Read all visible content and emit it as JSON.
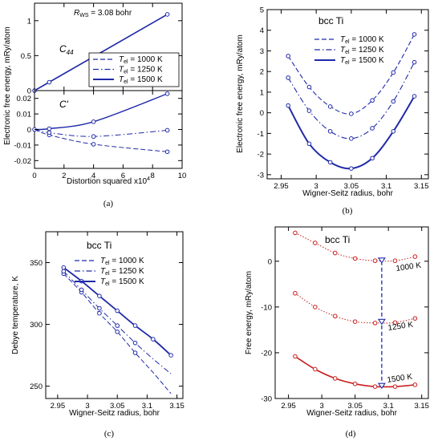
{
  "chart_data": [
    {
      "type": "line",
      "panel": "(a)",
      "xlabel": "Distortion squared x10",
      "xlabel_sup": "4",
      "ylabel": "Electronic free energy, mRy/atom",
      "annotations": {
        "rws": "R",
        "rws_sub": "WS",
        "rws_val": " = 3.08 bohr",
        "top": "C",
        "top_sub": "44",
        "bottom": "C'"
      },
      "xlim": [
        0,
        10
      ],
      "xticks": [
        "0",
        "2",
        "4",
        "6",
        "8",
        "10"
      ],
      "legend": [
        {
          "T": "T",
          "sub": "el",
          "rest": " = 1000 K",
          "style": "dashed"
        },
        {
          "T": "T",
          "sub": "el",
          "rest": " = 1250 K",
          "style": "dashdot"
        },
        {
          "T": "T",
          "sub": "el",
          "rest": " = 1500 K",
          "style": "solid"
        }
      ],
      "top_panel": {
        "ylim": [
          0,
          1.25
        ],
        "yticks": [
          "0",
          "0.5",
          "1"
        ],
        "points": [
          [
            0,
            0
          ],
          [
            1,
            0.12
          ],
          [
            4,
            0.48
          ],
          [
            9,
            1.09
          ]
        ],
        "series": [
          {
            "name": "1000 K",
            "values": [
              [
                0,
                0
              ],
              [
                9,
                1.09
              ]
            ]
          },
          {
            "name": "1250 K",
            "values": [
              [
                0,
                0
              ],
              [
                9,
                1.09
              ]
            ]
          },
          {
            "name": "1500 K",
            "values": [
              [
                0,
                0
              ],
              [
                9,
                1.09
              ]
            ]
          }
        ]
      },
      "bottom_panel": {
        "ylim": [
          -0.025,
          0.025
        ],
        "yticks": [
          "0.02",
          "0.01",
          "0",
          "-0.01",
          "-0.02"
        ],
        "series": [
          {
            "name": "1000 K",
            "values": [
              [
                0,
                0
              ],
              [
                1,
                -0.0035
              ],
              [
                4,
                -0.0095
              ],
              [
                9,
                -0.0143
              ]
            ]
          },
          {
            "name": "1250 K",
            "values": [
              [
                0,
                0
              ],
              [
                1,
                -0.002
              ],
              [
                4,
                -0.0045
              ],
              [
                9,
                -0.0005
              ]
            ]
          },
          {
            "name": "1500 K",
            "values": [
              [
                0,
                0
              ],
              [
                1,
                0.0005
              ],
              [
                4,
                0.005
              ],
              [
                9,
                0.023
              ]
            ]
          }
        ]
      }
    },
    {
      "type": "line",
      "panel": "(b)",
      "title": "bcc Ti",
      "xlabel": "Wigner-Seitz radius, bohr",
      "ylabel": "Electronic free energy, mRy/atom",
      "xlim": [
        2.93,
        3.16
      ],
      "ylim": [
        -3.2,
        5
      ],
      "xticks": [
        "2.95",
        "3",
        "3.05",
        "3.1",
        "3.15"
      ],
      "yticks": [
        "5",
        "4",
        "3",
        "2",
        "1",
        "0",
        "-1",
        "-2",
        "-3"
      ],
      "x": [
        2.96,
        2.99,
        3.02,
        3.05,
        3.08,
        3.11,
        3.14
      ],
      "series": [
        {
          "name": "1000 K",
          "values": [
            2.75,
            1.25,
            0.3,
            -0.05,
            0.6,
            1.95,
            3.8
          ]
        },
        {
          "name": "1250 K",
          "values": [
            1.7,
            0.1,
            -0.9,
            -1.25,
            -0.75,
            0.55,
            2.45
          ]
        },
        {
          "name": "1500 K",
          "values": [
            0.35,
            -1.5,
            -2.4,
            -2.7,
            -2.2,
            -0.9,
            0.8
          ]
        }
      ],
      "legend": [
        {
          "T": "T",
          "sub": "el",
          "rest": " = 1000 K",
          "style": "dashed"
        },
        {
          "T": "T",
          "sub": "el",
          "rest": " = 1250 K",
          "style": "dashdot"
        },
        {
          "T": "T",
          "sub": "el",
          "rest": " = 1500 K",
          "style": "solid"
        }
      ]
    },
    {
      "type": "line",
      "panel": "(c)",
      "title": "bcc Ti",
      "xlabel": "Wigner-Seitz radius, bohr",
      "ylabel": "Debye temperature, K",
      "xlim": [
        2.93,
        3.16
      ],
      "ylim": [
        240,
        375
      ],
      "xticks": [
        "2.95",
        "3",
        "3.05",
        "3.1",
        "3.15"
      ],
      "yticks": [
        "350",
        "300",
        "250"
      ],
      "x": [
        2.96,
        2.99,
        3.02,
        3.05,
        3.08,
        3.11,
        3.14
      ],
      "series": [
        {
          "name": "1000 K",
          "values": [
            341,
            326,
            309,
            294,
            277,
            261,
            244
          ]
        },
        {
          "name": "1250 K",
          "values": [
            343,
            328,
            313,
            299,
            285,
            272,
            260
          ]
        },
        {
          "name": "1500 K",
          "values": [
            346,
            335,
            323,
            311,
            299,
            288,
            275
          ]
        }
      ],
      "legend": [
        {
          "T": "T",
          "sub": "el",
          "rest": " = 1000 K",
          "style": "dashed"
        },
        {
          "T": "T",
          "sub": "el",
          "rest": " = 1250 K",
          "style": "dashdot"
        },
        {
          "T": "T",
          "sub": "el",
          "rest": " = 1500 K",
          "style": "solid"
        }
      ]
    },
    {
      "type": "line",
      "panel": "(d)",
      "title": "bcc Ti",
      "xlabel": "Wigner-Seitz radius, bohr",
      "ylabel": "Free energy, mRy/atom",
      "xlim": [
        2.93,
        3.16
      ],
      "ylim": [
        -30,
        7.5
      ],
      "xticks": [
        "2.95",
        "3",
        "3.05",
        "3.1",
        "3.15"
      ],
      "yticks": [
        "0",
        "-10",
        "-20",
        "-30"
      ],
      "x": [
        2.96,
        2.99,
        3.02,
        3.05,
        3.08,
        3.11,
        3.14
      ],
      "series": [
        {
          "name": "1000 K",
          "values": [
            6.2,
            4.0,
            1.8,
            0.6,
            0.1,
            0.1,
            1.0
          ]
        },
        {
          "name": "1250 K",
          "values": [
            -7.0,
            -10.0,
            -12.0,
            -13.2,
            -13.5,
            -13.4,
            -12.5
          ]
        },
        {
          "name": "1500 K",
          "values": [
            -20.8,
            -23.6,
            -25.6,
            -26.8,
            -27.4,
            -27.4,
            -27.0
          ]
        }
      ],
      "minima": {
        "x": 3.09,
        "values": [
          0,
          -13.4,
          -27.4
        ]
      },
      "labels": [
        "1000 K",
        "1250 K",
        "1500 K"
      ]
    }
  ],
  "captions": [
    "(a)",
    "(b)",
    "(c)",
    "(d)"
  ],
  "colors": {
    "blue": "#1f2aa8",
    "red": "#c81e1e"
  }
}
